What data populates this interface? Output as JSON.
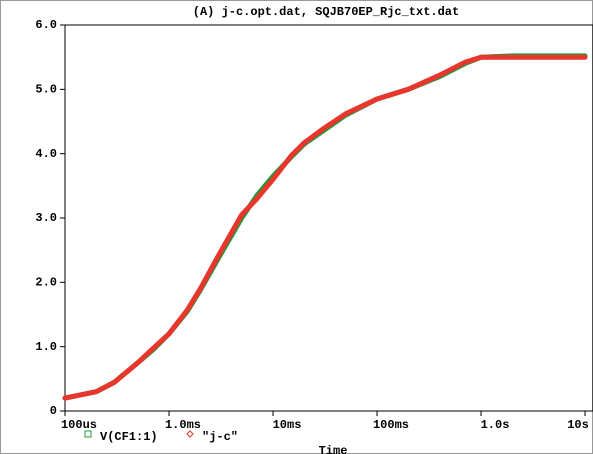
{
  "chart_data": {
    "type": "line",
    "title": "(A) j-c.opt.dat, SQJB70EP_Rjc_txt.dat",
    "x_label": "Time",
    "xscale": "log",
    "xlim": [
      0.0001,
      10
    ],
    "xticks": [
      {
        "value": 0.0001,
        "label": "100us"
      },
      {
        "value": 0.001,
        "label": "1.0ms"
      },
      {
        "value": 0.01,
        "label": "10ms"
      },
      {
        "value": 0.1,
        "label": "100ms"
      },
      {
        "value": 1,
        "label": "1.0s"
      },
      {
        "value": 10,
        "label": "10s"
      }
    ],
    "ylim": [
      0,
      6
    ],
    "yticks": [
      0,
      {
        "value": 1,
        "label": "1.0"
      },
      {
        "value": 2,
        "label": "2.0"
      },
      {
        "value": 3,
        "label": "3.0"
      },
      {
        "value": 4,
        "label": "4.0"
      },
      {
        "value": 5,
        "label": "5.0"
      },
      {
        "value": 6,
        "label": "6.0"
      }
    ],
    "x": [
      0.0001,
      0.0002,
      0.0003,
      0.0005,
      0.0007,
      0.001,
      0.0015,
      0.002,
      0.003,
      0.005,
      0.007,
      0.01,
      0.015,
      0.02,
      0.03,
      0.05,
      0.1,
      0.2,
      0.4,
      0.7,
      1,
      2,
      10
    ],
    "series": [
      {
        "name": "V(CF1:1)",
        "color": "#1f9a3c",
        "marker": "square",
        "values": [
          0.2,
          0.3,
          0.45,
          0.75,
          0.95,
          1.2,
          1.55,
          1.88,
          2.38,
          3.0,
          3.35,
          3.65,
          3.95,
          4.15,
          4.35,
          4.6,
          4.85,
          5.0,
          5.2,
          5.4,
          5.5,
          5.52,
          5.52
        ]
      },
      {
        "name": "\"j-c\"",
        "color": "#e8362c",
        "marker": "diamond",
        "values": [
          0.2,
          0.3,
          0.45,
          0.75,
          0.97,
          1.2,
          1.57,
          1.9,
          2.42,
          3.05,
          3.3,
          3.6,
          3.97,
          4.17,
          4.38,
          4.62,
          4.85,
          5.0,
          5.22,
          5.42,
          5.5,
          5.5,
          5.5
        ]
      }
    ]
  }
}
